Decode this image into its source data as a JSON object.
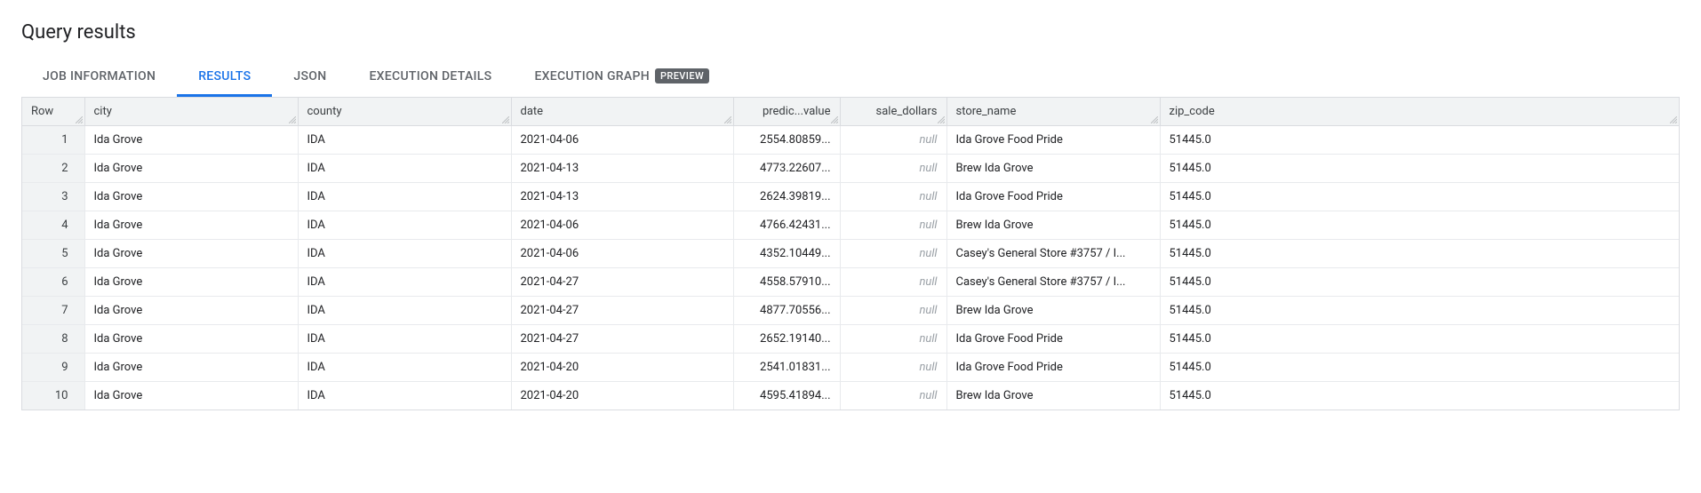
{
  "title": "Query results",
  "tabs": [
    {
      "label": "JOB INFORMATION",
      "active": false,
      "badge": null
    },
    {
      "label": "RESULTS",
      "active": true,
      "badge": null
    },
    {
      "label": "JSON",
      "active": false,
      "badge": null
    },
    {
      "label": "EXECUTION DETAILS",
      "active": false,
      "badge": null
    },
    {
      "label": "EXECUTION GRAPH",
      "active": false,
      "badge": "PREVIEW"
    }
  ],
  "columns": [
    {
      "key": "row",
      "label": "Row",
      "type": "rownum"
    },
    {
      "key": "city",
      "label": "city",
      "type": "text"
    },
    {
      "key": "county",
      "label": "county",
      "type": "text"
    },
    {
      "key": "date",
      "label": "date",
      "type": "text"
    },
    {
      "key": "predicted",
      "label": "predic...value",
      "type": "number"
    },
    {
      "key": "sale",
      "label": "sale_dollars",
      "type": "number"
    },
    {
      "key": "store",
      "label": "store_name",
      "type": "text"
    },
    {
      "key": "zip",
      "label": "zip_code",
      "type": "text"
    }
  ],
  "rows": [
    {
      "row": "1",
      "city": "Ida Grove",
      "county": "IDA",
      "date": "2021-04-06",
      "predicted": "2554.80859...",
      "sale": null,
      "store": "Ida Grove Food Pride",
      "zip": "51445.0"
    },
    {
      "row": "2",
      "city": "Ida Grove",
      "county": "IDA",
      "date": "2021-04-13",
      "predicted": "4773.22607...",
      "sale": null,
      "store": "Brew Ida Grove",
      "zip": "51445.0"
    },
    {
      "row": "3",
      "city": "Ida Grove",
      "county": "IDA",
      "date": "2021-04-13",
      "predicted": "2624.39819...",
      "sale": null,
      "store": "Ida Grove Food Pride",
      "zip": "51445.0"
    },
    {
      "row": "4",
      "city": "Ida Grove",
      "county": "IDA",
      "date": "2021-04-06",
      "predicted": "4766.42431...",
      "sale": null,
      "store": "Brew Ida Grove",
      "zip": "51445.0"
    },
    {
      "row": "5",
      "city": "Ida Grove",
      "county": "IDA",
      "date": "2021-04-06",
      "predicted": "4352.10449...",
      "sale": null,
      "store": "Casey's General Store #3757 / I...",
      "zip": "51445.0"
    },
    {
      "row": "6",
      "city": "Ida Grove",
      "county": "IDA",
      "date": "2021-04-27",
      "predicted": "4558.57910...",
      "sale": null,
      "store": "Casey's General Store #3757 / I...",
      "zip": "51445.0"
    },
    {
      "row": "7",
      "city": "Ida Grove",
      "county": "IDA",
      "date": "2021-04-27",
      "predicted": "4877.70556...",
      "sale": null,
      "store": "Brew Ida Grove",
      "zip": "51445.0"
    },
    {
      "row": "8",
      "city": "Ida Grove",
      "county": "IDA",
      "date": "2021-04-27",
      "predicted": "2652.19140...",
      "sale": null,
      "store": "Ida Grove Food Pride",
      "zip": "51445.0"
    },
    {
      "row": "9",
      "city": "Ida Grove",
      "county": "IDA",
      "date": "2021-04-20",
      "predicted": "2541.01831...",
      "sale": null,
      "store": "Ida Grove Food Pride",
      "zip": "51445.0"
    },
    {
      "row": "10",
      "city": "Ida Grove",
      "county": "IDA",
      "date": "2021-04-20",
      "predicted": "4595.41894...",
      "sale": null,
      "store": "Brew Ida Grove",
      "zip": "51445.0"
    }
  ],
  "null_label": "null",
  "colors": {
    "accent": "#1a73e8",
    "header_bg": "#f1f3f4",
    "border": "#dadce0",
    "row_border": "#e8eaed",
    "text": "#202124",
    "muted": "#5f6368",
    "badge_bg": "#5f6368",
    "null_text": "#9aa0a6"
  }
}
